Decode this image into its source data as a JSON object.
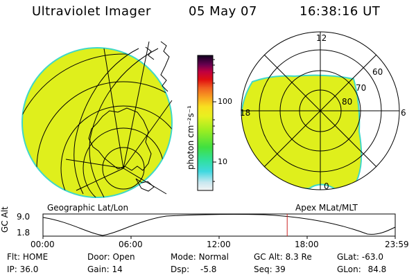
{
  "header": {
    "instrument": "Ultraviolet Imager",
    "date": "05 May 07",
    "time": "16:38:16 UT"
  },
  "left_panel_caption": "Geographic Lat/Lon",
  "right_panel_caption": "Apex MLat/MLT",
  "polar_grid": {
    "mlt_labels": {
      "top": "12",
      "left": "18",
      "right": "6",
      "bottom": "0"
    },
    "lat_labels": [
      "60",
      "70",
      "80"
    ]
  },
  "color_scale": {
    "unit": "photon cm⁻²s⁻¹",
    "ticks": [
      "100",
      "10"
    ]
  },
  "altitude_track": {
    "axis_label": "GC Alt",
    "y_ticks": [
      "9.0",
      "1.8"
    ],
    "x_ticks": [
      "00:00",
      "06:00",
      "12:00",
      "18:00",
      "23:59"
    ],
    "marker_time_hours": 16.64
  },
  "status": {
    "flt_label": "Flt:",
    "flt_value": "HOME",
    "ip_label": "IP:",
    "ip_value": "36.0",
    "door_label": "Door:",
    "door_value": "Open",
    "gain_label": "Gain:",
    "gain_value": "14",
    "mode_label": "Mode:",
    "mode_value": "Normal",
    "dsp_label": "Dsp:",
    "dsp_value": "-5.8",
    "gcalt_label": "GC Alt:",
    "gcalt_value": "8.3 Re",
    "seq_label": "Seq:",
    "seq_value": "39",
    "glat_label": "GLat:",
    "glat_value": "-63.0",
    "glon_label": "GLon:",
    "glon_value": "84.8"
  },
  "colors": {
    "fill": "#dfef1c",
    "rim": "#3fd8c8",
    "marker": "#cc2222"
  }
}
